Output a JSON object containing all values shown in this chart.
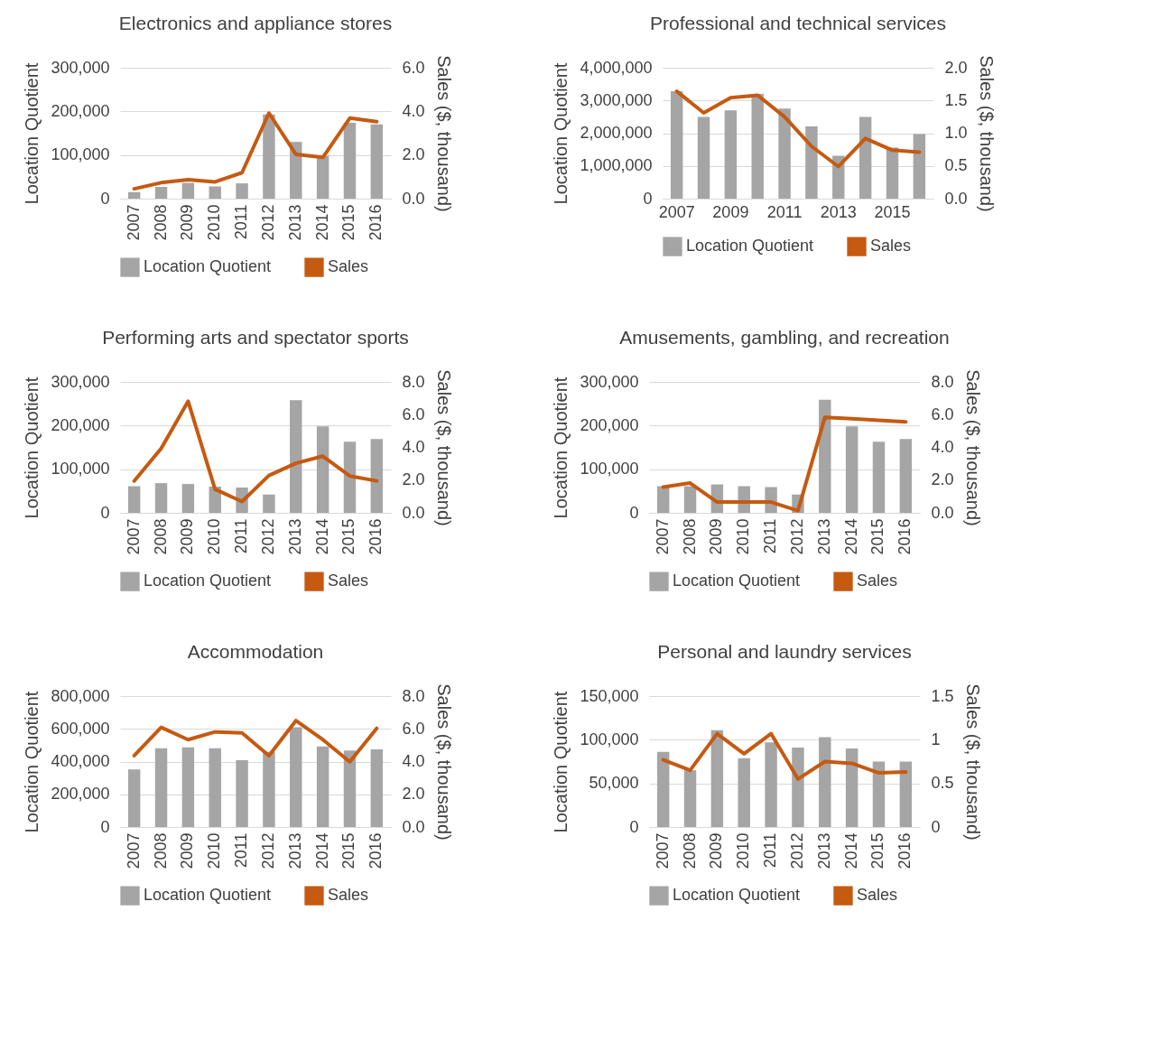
{
  "chart_data": [
    {
      "type": "bar",
      "title": "Electronics and appliance stores",
      "categories": [
        "2007",
        "2008",
        "2009",
        "2010",
        "2011",
        "2012",
        "2013",
        "2014",
        "2015",
        "2016"
      ],
      "ylabel": "Location Quotient",
      "y2label": "Sales ($, thousand)",
      "ylim": [
        0,
        300000
      ],
      "yticks": [
        {
          "value": 0,
          "label": "0"
        },
        {
          "value": 100000,
          "label": "100,000"
        },
        {
          "value": 200000,
          "label": "200,000"
        },
        {
          "value": 300000,
          "label": "300,000"
        }
      ],
      "y2lim": [
        0,
        6
      ],
      "y2ticks": [
        {
          "value": 0,
          "label": "0.0"
        },
        {
          "value": 2,
          "label": "2.0"
        },
        {
          "value": 4,
          "label": "4.0"
        },
        {
          "value": 6,
          "label": "6.0"
        }
      ],
      "grid": "y",
      "legend": "bottom",
      "series": [
        {
          "name": "Location Quotient",
          "color": "#a5a5a5",
          "values": [
            15000,
            27000,
            36000,
            28000,
            35000,
            193000,
            130000,
            98000,
            174000,
            170000
          ]
        },
        {
          "name": "Sales",
          "type": "line",
          "axis": "y2",
          "color": "#c55a11",
          "values": [
            0.45,
            0.73,
            0.87,
            0.77,
            1.19,
            3.92,
            2.03,
            1.89,
            3.69,
            3.53
          ]
        }
      ]
    },
    {
      "type": "bar",
      "title": "Professional and technical services",
      "categories": [
        "2007",
        null,
        "2009",
        null,
        "2011",
        null,
        "2013",
        null,
        "2015",
        null
      ],
      "ylabel": "Location Quotient",
      "y2label": "Sales ($, thousand)",
      "ylim": [
        0,
        4000000
      ],
      "yticks": [
        {
          "value": 0,
          "label": "0"
        },
        {
          "value": 1000000,
          "label": "1,000,000"
        },
        {
          "value": 2000000,
          "label": "2,000,000"
        },
        {
          "value": 3000000,
          "label": "3,000,000"
        },
        {
          "value": 4000000,
          "label": "4,000,000"
        }
      ],
      "y2lim": [
        0,
        2
      ],
      "y2ticks": [
        {
          "value": 0,
          "label": "0.0"
        },
        0.5,
        {
          "value": 1,
          "label": "1.0"
        },
        1.5,
        {
          "value": 2,
          "label": "2.0"
        }
      ],
      "grid": "y",
      "legend": "bottom",
      "series": [
        {
          "name": "Location Quotient",
          "color": "#a5a5a5",
          "values": [
            3280000,
            2500000,
            2700000,
            3200000,
            2750000,
            2210000,
            1310000,
            2500000,
            1560000,
            1970000
          ]
        },
        {
          "name": "Sales",
          "type": "line",
          "axis": "y2",
          "color": "#c55a11",
          "values": [
            1.64,
            1.31,
            1.54,
            1.58,
            1.25,
            0.8,
            0.49,
            0.92,
            0.74,
            0.71
          ]
        }
      ]
    },
    {
      "type": "bar",
      "title": "Performing arts and spectator sports",
      "categories": [
        "2007",
        "2008",
        "2009",
        "2010",
        "2011",
        "2012",
        "2013",
        "2014",
        "2015",
        "2016"
      ],
      "ylabel": "Location Quotient",
      "y2label": "Sales ($, thousand)",
      "ylim": [
        0,
        300000
      ],
      "yticks": [
        {
          "value": 0,
          "label": "0"
        },
        {
          "value": 100000,
          "label": "100,000"
        },
        {
          "value": 200000,
          "label": "200,000"
        },
        {
          "value": 300000,
          "label": "300,000"
        }
      ],
      "y2lim": [
        0,
        8
      ],
      "y2ticks": [
        {
          "value": 0,
          "label": "0.0"
        },
        {
          "value": 2,
          "label": "2.0"
        },
        {
          "value": 4,
          "label": "4.0"
        },
        {
          "value": 6,
          "label": "6.0"
        },
        {
          "value": 8,
          "label": "8.0"
        }
      ],
      "grid": "y",
      "legend": "bottom",
      "series": [
        {
          "name": "Location Quotient",
          "color": "#a5a5a5",
          "values": [
            61000,
            68000,
            66000,
            60000,
            58000,
            42000,
            258000,
            198000,
            163000,
            169000
          ]
        },
        {
          "name": "Sales",
          "type": "line",
          "axis": "y2",
          "color": "#c55a11",
          "values": [
            1.95,
            3.93,
            6.82,
            1.44,
            0.69,
            2.28,
            3.03,
            3.46,
            2.25,
            1.95
          ]
        }
      ]
    },
    {
      "type": "bar",
      "title": "Amusements, gambling, and recreation",
      "categories": [
        "2007",
        "2008",
        "2009",
        "2010",
        "2011",
        "2012",
        "2013",
        "2014",
        "2015",
        "2016"
      ],
      "ylabel": "Location Quotient",
      "y2label": "Sales ($, thousand)",
      "ylim": [
        0,
        300000
      ],
      "yticks": [
        {
          "value": 0,
          "label": "0"
        },
        {
          "value": 100000,
          "label": "100,000"
        },
        {
          "value": 200000,
          "label": "200,000"
        },
        {
          "value": 300000,
          "label": "300,000"
        }
      ],
      "y2lim": [
        0,
        8
      ],
      "y2ticks": [
        {
          "value": 0,
          "label": "0.0"
        },
        {
          "value": 2,
          "label": "2.0"
        },
        {
          "value": 4,
          "label": "4.0"
        },
        {
          "value": 6,
          "label": "6.0"
        },
        {
          "value": 8,
          "label": "8.0"
        }
      ],
      "grid": "y",
      "legend": "bottom",
      "series": [
        {
          "name": "Location Quotient",
          "color": "#a5a5a5",
          "values": [
            61000,
            61000,
            65000,
            61000,
            59000,
            42000,
            259000,
            198000,
            163000,
            169000
          ]
        },
        {
          "name": "Sales",
          "type": "line",
          "axis": "y2",
          "color": "#c55a11",
          "values": [
            1.57,
            1.82,
            0.66,
            0.66,
            0.66,
            0.13,
            5.84,
            5.75,
            5.66,
            5.56
          ]
        }
      ]
    },
    {
      "type": "bar",
      "title": "Accommodation",
      "categories": [
        "2007",
        "2008",
        "2009",
        "2010",
        "2011",
        "2012",
        "2013",
        "2014",
        "2015",
        "2016"
      ],
      "ylabel": "Location Quotient",
      "y2label": "Sales ($, thousand)",
      "ylim": [
        0,
        800000
      ],
      "yticks": [
        {
          "value": 0,
          "label": "0"
        },
        {
          "value": 200000,
          "label": "200,000"
        },
        {
          "value": 400000,
          "label": "400,000"
        },
        {
          "value": 600000,
          "label": "600,000"
        },
        {
          "value": 800000,
          "label": "800,000"
        }
      ],
      "y2lim": [
        0,
        8
      ],
      "y2ticks": [
        {
          "value": 0,
          "label": "0.0"
        },
        {
          "value": 2,
          "label": "2.0"
        },
        {
          "value": 4,
          "label": "4.0"
        },
        {
          "value": 6,
          "label": "6.0"
        },
        {
          "value": 8,
          "label": "8.0"
        }
      ],
      "grid": "y",
      "legend": "bottom",
      "series": [
        {
          "name": "Location Quotient",
          "color": "#a5a5a5",
          "values": [
            352000,
            481000,
            487000,
            481000,
            408000,
            460000,
            609000,
            493000,
            468000,
            474000
          ]
        },
        {
          "name": "Sales",
          "type": "line",
          "axis": "y2",
          "color": "#c55a11",
          "values": [
            4.36,
            6.09,
            5.34,
            5.81,
            5.75,
            4.36,
            6.5,
            5.34,
            3.99,
            6.03
          ]
        }
      ]
    },
    {
      "type": "bar",
      "title": "Personal and laundry services",
      "categories": [
        "2007",
        "2008",
        "2009",
        "2010",
        "2011",
        "2012",
        "2013",
        "2014",
        "2015",
        "2016"
      ],
      "ylabel": "Location Quotient",
      "y2label": "Sales ($, thousand)",
      "ylim": [
        0,
        150000
      ],
      "yticks": [
        {
          "value": 0,
          "label": "0"
        },
        {
          "value": 50000,
          "label": "50,000"
        },
        {
          "value": 100000,
          "label": "100,000"
        },
        {
          "value": 150000,
          "label": "150,000"
        }
      ],
      "y2lim": [
        0,
        1.5
      ],
      "y2ticks": [
        0,
        0.5,
        1,
        1.5
      ],
      "grid": "y",
      "legend": "bottom",
      "series": [
        {
          "name": "Location Quotient",
          "color": "#a5a5a5",
          "values": [
            86000,
            65000,
            111000,
            79000,
            97000,
            91000,
            103000,
            90000,
            75000,
            75000
          ]
        },
        {
          "name": "Sales",
          "type": "line",
          "axis": "y2",
          "color": "#c55a11",
          "values": [
            0.77,
            0.65,
            1.07,
            0.84,
            1.07,
            0.55,
            0.75,
            0.73,
            0.62,
            0.63
          ]
        }
      ]
    }
  ]
}
